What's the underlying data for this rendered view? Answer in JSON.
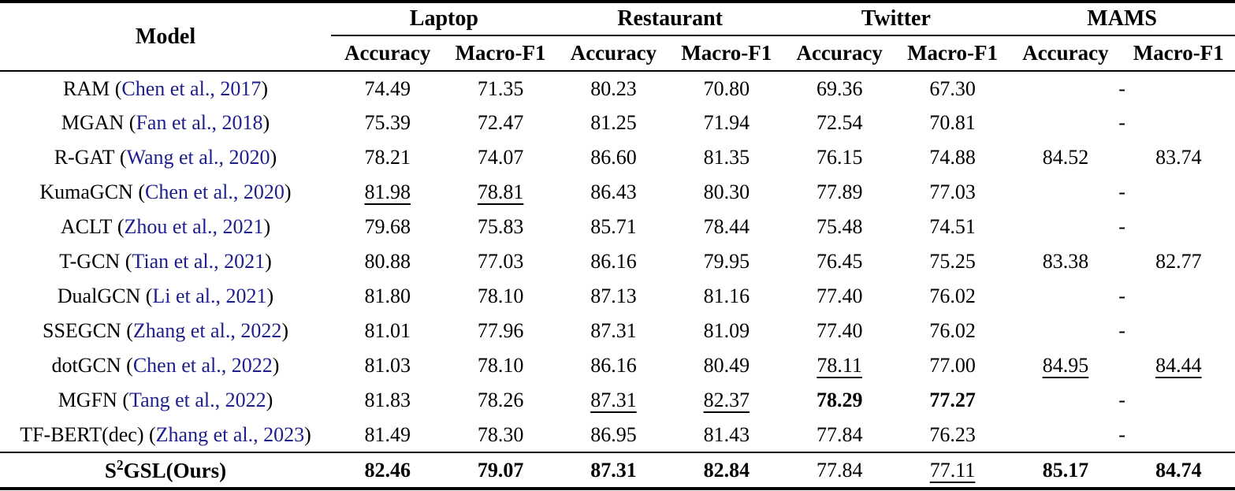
{
  "table": {
    "header": {
      "model_label": "Model",
      "groups": [
        {
          "label": "Laptop"
        },
        {
          "label": "Restaurant"
        },
        {
          "label": "Twitter"
        },
        {
          "label": "MAMS"
        }
      ],
      "subcolumns": [
        "Accuracy",
        "Macro-F1"
      ]
    },
    "punct": {
      "open": "(",
      "close": ")",
      "dash": "-"
    },
    "colors": {
      "citation": "#1e1e8c",
      "text": "#000000",
      "rule": "#000000"
    },
    "rows": [
      {
        "model": "RAM",
        "citation": "Chen et al., 2017",
        "values": [
          "74.49",
          "71.35",
          "80.23",
          "70.80",
          "69.36",
          "67.30"
        ],
        "styles": [
          "",
          "",
          "",
          "",
          "",
          ""
        ],
        "mams_dash": true
      },
      {
        "model": "MGAN",
        "citation": "Fan et al., 2018",
        "values": [
          "75.39",
          "72.47",
          "81.25",
          "71.94",
          "72.54",
          "70.81"
        ],
        "styles": [
          "",
          "",
          "",
          "",
          "",
          ""
        ],
        "mams_dash": true
      },
      {
        "model": "R-GAT",
        "citation": "Wang et al., 2020",
        "values": [
          "78.21",
          "74.07",
          "86.60",
          "81.35",
          "76.15",
          "74.88",
          "84.52",
          "83.74"
        ],
        "styles": [
          "",
          "",
          "",
          "",
          "",
          "",
          "",
          ""
        ],
        "mams_dash": false
      },
      {
        "model": "KumaGCN",
        "citation": "Chen et al., 2020",
        "values": [
          "81.98",
          "78.81",
          "86.43",
          "80.30",
          "77.89",
          "77.03"
        ],
        "styles": [
          "u",
          "u",
          "",
          "",
          "",
          ""
        ],
        "mams_dash": true
      },
      {
        "model": "ACLT",
        "citation": "Zhou et al., 2021",
        "values": [
          "79.68",
          "75.83",
          "85.71",
          "78.44",
          "75.48",
          "74.51"
        ],
        "styles": [
          "",
          "",
          "",
          "",
          "",
          ""
        ],
        "mams_dash": true
      },
      {
        "model": "T-GCN",
        "citation": "Tian et al., 2021",
        "values": [
          "80.88",
          "77.03",
          "86.16",
          "79.95",
          "76.45",
          "75.25",
          "83.38",
          "82.77"
        ],
        "styles": [
          "",
          "",
          "",
          "",
          "",
          "",
          "",
          ""
        ],
        "mams_dash": false
      },
      {
        "model": "DualGCN",
        "citation": "Li et al., 2021",
        "values": [
          "81.80",
          "78.10",
          "87.13",
          "81.16",
          "77.40",
          "76.02"
        ],
        "styles": [
          "",
          "",
          "",
          "",
          "",
          ""
        ],
        "mams_dash": true
      },
      {
        "model": "SSEGCN",
        "citation": "Zhang et al., 2022",
        "values": [
          "81.01",
          "77.96",
          "87.31",
          "81.09",
          "77.40",
          "76.02"
        ],
        "styles": [
          "",
          "",
          "",
          "",
          "",
          ""
        ],
        "mams_dash": true
      },
      {
        "model": "dotGCN",
        "citation": "Chen et al., 2022",
        "values": [
          "81.03",
          "78.10",
          "86.16",
          "80.49",
          "78.11",
          "77.00",
          "84.95",
          "84.44"
        ],
        "styles": [
          "",
          "",
          "",
          "",
          "u",
          "",
          "u",
          "u"
        ],
        "mams_dash": false
      },
      {
        "model": "MGFN",
        "citation": "Tang et al., 2022",
        "values": [
          "81.83",
          "78.26",
          "87.31",
          "82.37",
          "78.29",
          "77.27"
        ],
        "styles": [
          "",
          "",
          "u",
          "u",
          "b",
          "b"
        ],
        "mams_dash": true
      },
      {
        "model": "TF-BERT(dec)",
        "citation": "Zhang et al., 2023",
        "values": [
          "81.49",
          "78.30",
          "86.95",
          "81.43",
          "77.84",
          "76.23"
        ],
        "styles": [
          "",
          "",
          "",
          "",
          "",
          ""
        ],
        "mams_dash": true
      }
    ],
    "final_row": {
      "model_prefix": "S",
      "model_sup": "2",
      "model_suffix": "GSL(Ours)",
      "values": [
        "82.46",
        "79.07",
        "87.31",
        "82.84",
        "77.84",
        "77.11",
        "85.17",
        "84.74"
      ],
      "styles": [
        "b",
        "b",
        "b",
        "b",
        "",
        "u",
        "b",
        "b"
      ]
    }
  }
}
